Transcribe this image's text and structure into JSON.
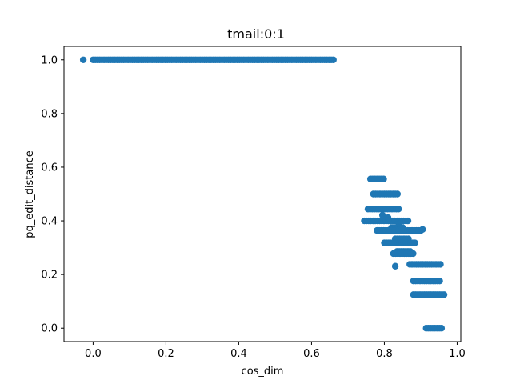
{
  "chart_data": {
    "type": "scatter",
    "title": "tmail:0:1",
    "xlabel": "cos_dim",
    "ylabel": "pq_edit_distance",
    "xlim": [
      -0.08,
      1.01
    ],
    "ylim": [
      -0.05,
      1.05
    ],
    "grid": false,
    "legend": "none",
    "marker_color": "#1f77b4",
    "x_ticks": [
      {
        "value": 0.0,
        "label": "0.0"
      },
      {
        "value": 0.2,
        "label": "0.2"
      },
      {
        "value": 0.4,
        "label": "0.4"
      },
      {
        "value": 0.6,
        "label": "0.6"
      },
      {
        "value": 0.8,
        "label": "0.8"
      },
      {
        "value": 1.0,
        "label": "1.0"
      }
    ],
    "y_ticks": [
      {
        "value": 0.0,
        "label": "0.0"
      },
      {
        "value": 0.2,
        "label": "0.2"
      },
      {
        "value": 0.4,
        "label": "0.4"
      },
      {
        "value": 0.6,
        "label": "0.6"
      },
      {
        "value": 0.8,
        "label": "0.8"
      },
      {
        "value": 1.0,
        "label": "1.0"
      }
    ],
    "bands": [
      {
        "y": 1.0,
        "x_start": 0.0,
        "x_end": 0.665,
        "step": 0.006
      },
      {
        "y": 0.556,
        "x_start": 0.762,
        "x_end": 0.802,
        "step": 0.006
      },
      {
        "y": 0.5,
        "x_start": 0.77,
        "x_end": 0.84,
        "step": 0.006
      },
      {
        "y": 0.444,
        "x_start": 0.755,
        "x_end": 0.84,
        "step": 0.006
      },
      {
        "y": 0.4,
        "x_start": 0.745,
        "x_end": 0.865,
        "step": 0.006
      },
      {
        "y": 0.375,
        "x_start": 0.82,
        "x_end": 0.855,
        "step": 0.006
      },
      {
        "y": 0.364,
        "x_start": 0.78,
        "x_end": 0.905,
        "step": 0.006
      },
      {
        "y": 0.333,
        "x_start": 0.83,
        "x_end": 0.87,
        "step": 0.006
      },
      {
        "y": 0.318,
        "x_start": 0.8,
        "x_end": 0.885,
        "step": 0.006
      },
      {
        "y": 0.286,
        "x_start": 0.835,
        "x_end": 0.875,
        "step": 0.006
      },
      {
        "y": 0.278,
        "x_start": 0.825,
        "x_end": 0.88,
        "step": 0.006
      },
      {
        "y": 0.238,
        "x_start": 0.87,
        "x_end": 0.955,
        "step": 0.006
      },
      {
        "y": 0.176,
        "x_start": 0.88,
        "x_end": 0.955,
        "step": 0.006
      },
      {
        "y": 0.125,
        "x_start": 0.88,
        "x_end": 0.965,
        "step": 0.006
      },
      {
        "y": 0.0,
        "x_start": 0.915,
        "x_end": 0.96,
        "step": 0.006
      }
    ],
    "points": [
      {
        "x": -0.027,
        "y": 1.0
      },
      {
        "x": 0.795,
        "y": 0.421
      },
      {
        "x": 0.81,
        "y": 0.412
      },
      {
        "x": 0.84,
        "y": 0.389
      },
      {
        "x": 0.83,
        "y": 0.231
      },
      {
        "x": 0.905,
        "y": 0.368
      }
    ]
  }
}
